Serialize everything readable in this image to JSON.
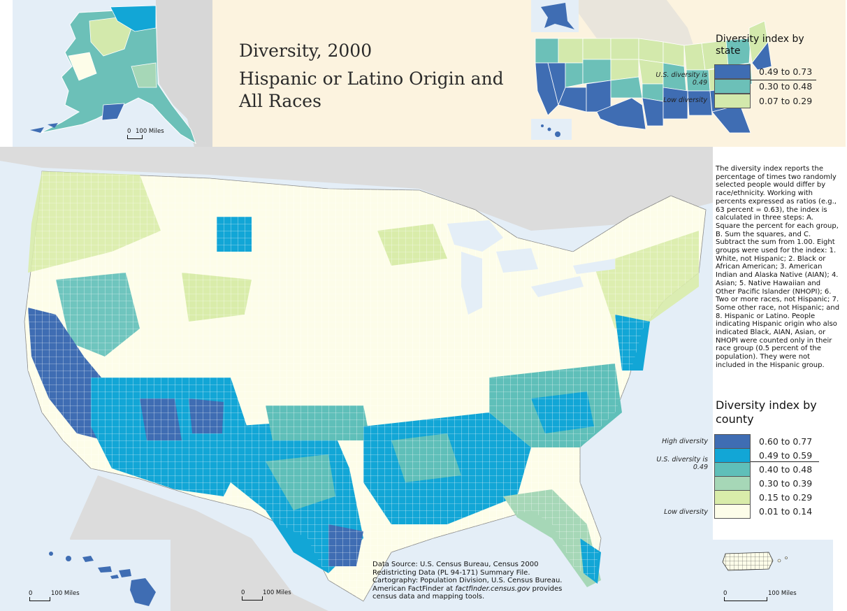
{
  "title": "Diversity, 2000",
  "subtitle": "Hispanic or Latino Origin and All Races",
  "state_legend": {
    "title": "Diversity index by state",
    "us_label": "U.S. diversity is 0.49",
    "low_label": "Low diversity",
    "classes": [
      {
        "label": "0.49 to 0.73",
        "color": "#3f6db3"
      },
      {
        "label": "0.30 to 0.48",
        "color": "#6cc0b8"
      },
      {
        "label": "0.07 to 0.29",
        "color": "#d3e9ac"
      }
    ]
  },
  "county_legend": {
    "title": "Diversity index by county",
    "high_label": "High diversity",
    "us_label": "U.S. diversity is 0.49",
    "low_label": "Low diversity",
    "classes": [
      {
        "label": "0.60 to 0.77",
        "color": "#3f6db3"
      },
      {
        "label": "0.49 to 0.59",
        "color": "#12a6d6"
      },
      {
        "label": "0.40 to 0.48",
        "color": "#5fbfb9"
      },
      {
        "label": "0.30 to 0.39",
        "color": "#a6d7b7"
      },
      {
        "label": "0.15 to 0.29",
        "color": "#d9ecaa"
      },
      {
        "label": "0.01 to 0.14",
        "color": "#fdfde9"
      }
    ]
  },
  "explanation": "The diversity index reports the percentage of times two randomly selected people would differ by race/ethnicity. Working with percents expressed as ratios (e.g., 63 percent = 0.63), the index is calculated in three steps: A. Square the percent for each group, B. Sum the squares, and C. Subtract the sum from 1.00. Eight groups were used for the index: 1. White, not Hispanic; 2. Black or African American; 3. American Indian and Alaska Native (AIAN); 4. Asian; 5. Native Hawaiian and Other Pacific Islander (NHOPI); 6. Two or more races, not Hispanic; 7. Some other race, not Hispanic; and 8. Hispanic or Latino. People indicating Hispanic origin who also indicated Black, AIAN, Asian, or NHOPI were counted only in their race group (0.5 percent of the population). They were not included in the Hispanic group.",
  "source": {
    "line1": "Data Source: U.S. Census Bureau, Census 2000",
    "line2": "Redistricting Data (PL 94-171) Summary File.",
    "line3": "Cartography: Population Division, U.S. Census Bureau.",
    "line4_pre": "American FactFinder at ",
    "line4_link": "factfinder.census.gov",
    "line4_post": " provides",
    "line5": "census data and mapping tools."
  },
  "scales": {
    "alaska": {
      "zero": "0",
      "label": "100 Miles"
    },
    "mainland": {
      "zero": "0",
      "label": "100 Miles"
    },
    "hawaii": {
      "zero": "0",
      "label": "100 Miles"
    },
    "puerto_rico": {
      "zero": "0",
      "label": "100 Miles"
    }
  }
}
